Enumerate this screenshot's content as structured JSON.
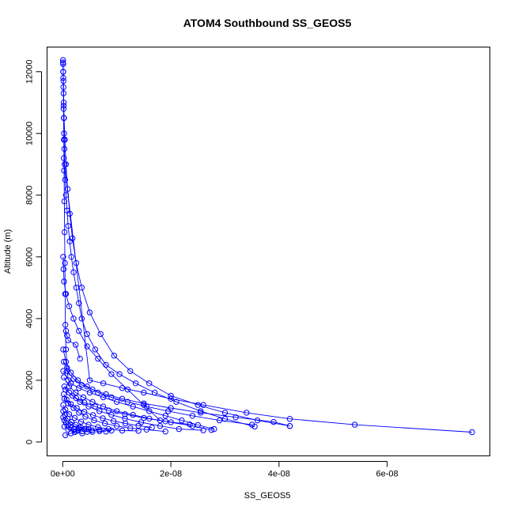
{
  "chart_data": {
    "type": "line",
    "title": "ATOM4 Southbound SS_GEOS5",
    "xlabel": "SS_GEOS5",
    "ylabel": "Altitude (m)",
    "xlim": [
      -2.9e-09,
      7.9e-08
    ],
    "ylim": [
      -450,
      12800
    ],
    "x_ticks": [
      0,
      2e-08,
      4e-08,
      6e-08
    ],
    "x_tick_labels": [
      "0e+00",
      "2e-08",
      "4e-08",
      "6e-08"
    ],
    "y_ticks": [
      0,
      2000,
      4000,
      6000,
      8000,
      10000,
      12000
    ],
    "y_tick_labels": [
      "0",
      "2000",
      "4000",
      "6000",
      "8000",
      "10000",
      "12000"
    ],
    "grid": false,
    "marker": "open-circle",
    "color": "#0000ff",
    "series": [
      {
        "x": [
          5e-11,
          8e-11,
          1e-10,
          1.3e-10,
          1.5e-10,
          1.7e-10,
          2e-10,
          2.4e-10,
          3e-10,
          3.5e-10,
          4.5e-10,
          6e-10,
          8e-10,
          1e-09,
          1.3e-09,
          1.6e-09,
          2e-09,
          2.5e-09,
          3e-09,
          3.5e-09,
          4.5e-09,
          6e-09,
          8e-09,
          1.05e-08,
          1.35e-08,
          1.7e-08,
          2.1e-08,
          2.55e-08,
          3e-08,
          3.55e-08
        ],
        "y": [
          12380,
          12250,
          12000,
          11700,
          11300,
          10900,
          10500,
          10000,
          9500,
          9000,
          8500,
          8000,
          7500,
          7000,
          6500,
          6000,
          5500,
          5000,
          4500,
          4000,
          3500,
          3000,
          2500,
          2200,
          1900,
          1600,
          1300,
          1000,
          750,
          500
        ]
      },
      {
        "x": [
          5e-11,
          9e-11,
          1.3e-10,
          1.8e-10,
          2.5e-10,
          4e-10,
          6e-10,
          9e-10,
          1.3e-09,
          1.8e-09,
          2.5e-09,
          3.5e-09,
          5e-09,
          7e-09,
          9.5e-09,
          1.25e-08,
          1.6e-08,
          2e-08,
          2.5e-08,
          3e-08,
          3.6e-08,
          4.2e-08
        ],
        "y": [
          12300,
          12000,
          11500,
          11000,
          10500,
          9800,
          9000,
          8200,
          7400,
          6600,
          5800,
          5000,
          4200,
          3500,
          2800,
          2300,
          1900,
          1500,
          1200,
          950,
          700,
          520
        ]
      },
      {
        "x": [
          2e-10,
          5e-09,
          7.5e-09,
          1.1e-08,
          1.5e-08,
          2e-08,
          2.6e-08,
          3.4e-08,
          4.2e-08,
          5.4e-08,
          7.57e-08
        ],
        "y": [
          9200,
          2000,
          1900,
          1750,
          1600,
          1400,
          1200,
          950,
          750,
          560,
          320
        ]
      },
      {
        "x": [
          8e-11,
          1.5e-10,
          2.5e-10,
          6e-10,
          1.2e-09,
          2e-09,
          3e-09,
          4.5e-09,
          6.5e-09,
          9e-09,
          1.2e-08,
          1.5e-08,
          1.8e-08
        ],
        "y": [
          6000,
          5600,
          5200,
          4800,
          4400,
          4000,
          3600,
          3100,
          2700,
          2200,
          1700,
          1200,
          700
        ]
      },
      {
        "x": [
          1e-10,
          1.5e-09,
          3e-09,
          5e-09,
          7.5e-09,
          1e-08,
          1.3e-08,
          1.6e-08,
          1.9e-08,
          2.2e-08,
          2.5e-08,
          2.8e-08
        ],
        "y": [
          2300,
          1900,
          1750,
          1600,
          1450,
          1300,
          1150,
          1000,
          850,
          700,
          550,
          420
        ]
      },
      {
        "x": [
          2e-10,
          1.2e-09,
          2.4e-09,
          3.8e-09,
          5.5e-09,
          7.5e-09,
          1e-08,
          1.3e-08,
          1.6e-08,
          2e-08,
          2.4e-08,
          2.75e-08
        ],
        "y": [
          2100,
          1800,
          1600,
          1450,
          1300,
          1150,
          1000,
          880,
          760,
          640,
          520,
          390
        ]
      },
      {
        "x": [
          5e-10,
          1.8e-09,
          3.2e-09,
          4.8e-09,
          6.8e-09,
          9e-09,
          1.15e-08,
          1.45e-08,
          1.8e-08,
          2.15e-08,
          2.6e-08
        ],
        "y": [
          1700,
          1500,
          1300,
          1150,
          1000,
          880,
          760,
          640,
          520,
          420,
          380
        ]
      },
      {
        "x": [
          3e-10,
          1e-09,
          2e-09,
          3e-09,
          4.2e-09,
          5.8e-09,
          7.8e-09,
          1e-08,
          1.25e-08,
          1.55e-08,
          1.9e-08
        ],
        "y": [
          1400,
          1250,
          1100,
          950,
          820,
          700,
          600,
          520,
          450,
          400,
          340
        ]
      },
      {
        "x": [
          1e-10,
          5e-10,
          1.2e-09,
          2.2e-09,
          3.4e-09,
          4.8e-09,
          6.5e-09,
          8.5e-09,
          1.1e-08,
          1.4e-08
        ],
        "y": [
          1200,
          1050,
          900,
          780,
          660,
          560,
          480,
          420,
          370,
          360
        ]
      },
      {
        "x": [
          1e-10,
          4e-10,
          9e-10,
          1.6e-09,
          2.4e-09,
          3.3e-09,
          4.3e-09,
          5.4e-09,
          6.8e-09,
          8e-09
        ],
        "y": [
          1000,
          880,
          760,
          650,
          560,
          480,
          420,
          380,
          350,
          340
        ]
      },
      {
        "x": [
          1e-10,
          3e-10,
          6e-10,
          1e-09,
          1.5e-09,
          2.1e-09,
          2.8e-09,
          3.6e-09,
          4.5e-09,
          5.5e-09
        ],
        "y": [
          800,
          700,
          620,
          540,
          470,
          420,
          380,
          350,
          330,
          330
        ]
      },
      {
        "x": [
          2e-10,
          8e-10,
          2e-09,
          3.5e-09,
          5.5e-09,
          8e-09,
          1.1e-08,
          1.5e-08,
          2e-08,
          2.55e-08,
          3.2e-08,
          3.9e-08,
          4.2e-08
        ],
        "y": [
          2600,
          2300,
          2050,
          1850,
          1700,
          1550,
          1400,
          1250,
          1100,
          950,
          800,
          650,
          520
        ]
      },
      {
        "x": [
          1e-10,
          6e-10,
          1.5e-09,
          2.8e-09,
          4.5e-09,
          6.5e-09,
          9e-09,
          1.2e-08,
          1.55e-08,
          1.95e-08,
          2.4e-08,
          2.9e-08,
          3.5e-08
        ],
        "y": [
          3000,
          2600,
          2250,
          2000,
          1800,
          1600,
          1450,
          1300,
          1150,
          1000,
          850,
          700,
          560
        ]
      },
      {
        "x": [
          3e-10,
          1.2e-09,
          2.5e-09,
          4e-09,
          6e-09,
          8.5e-09,
          1.15e-08,
          1.5e-08,
          1.9e-08,
          2.35e-08
        ],
        "y": [
          1800,
          1600,
          1420,
          1280,
          1150,
          1020,
          900,
          780,
          670,
          570
        ]
      },
      {
        "x": [
          2e-10,
          7e-10,
          1.5e-09,
          2.6e-09,
          4e-09,
          5.6e-09,
          7.4e-09,
          9.4e-09,
          1.16e-08,
          1.4e-08,
          1.65e-08
        ],
        "y": [
          1550,
          1380,
          1230,
          1100,
          980,
          870,
          770,
          680,
          600,
          530,
          470
        ]
      },
      {
        "x": [
          1e-10,
          1.5e-10,
          2e-10,
          2.5e-10,
          3e-10,
          3.5e-10,
          4e-10,
          4.5e-10,
          5e-10,
          6e-10,
          8e-10,
          1e-09
        ],
        "y": [
          11800,
          10800,
          9800,
          8800,
          7800,
          6800,
          5800,
          4800,
          3800,
          3000,
          2400,
          2000
        ]
      },
      {
        "x": [
          3e-10,
          1e-09,
          2.2e-09,
          3.6e-09
        ],
        "y": [
          500,
          400,
          320,
          280
        ]
      },
      {
        "x": [
          1.5e-09,
          3e-09,
          4.8e-09,
          6.8e-09,
          9e-09
        ],
        "y": [
          550,
          470,
          420,
          390,
          370
        ]
      },
      {
        "x": [
          5e-10,
          1.5e-09,
          2.5e-09,
          4e-09
        ],
        "y": [
          220,
          280,
          350,
          420
        ]
      },
      {
        "x": [
          6e-10,
          8e-10,
          1e-09,
          2.4e-09,
          3.2e-09
        ],
        "y": [
          3600,
          3450,
          3300,
          3150,
          2700
        ]
      }
    ]
  }
}
